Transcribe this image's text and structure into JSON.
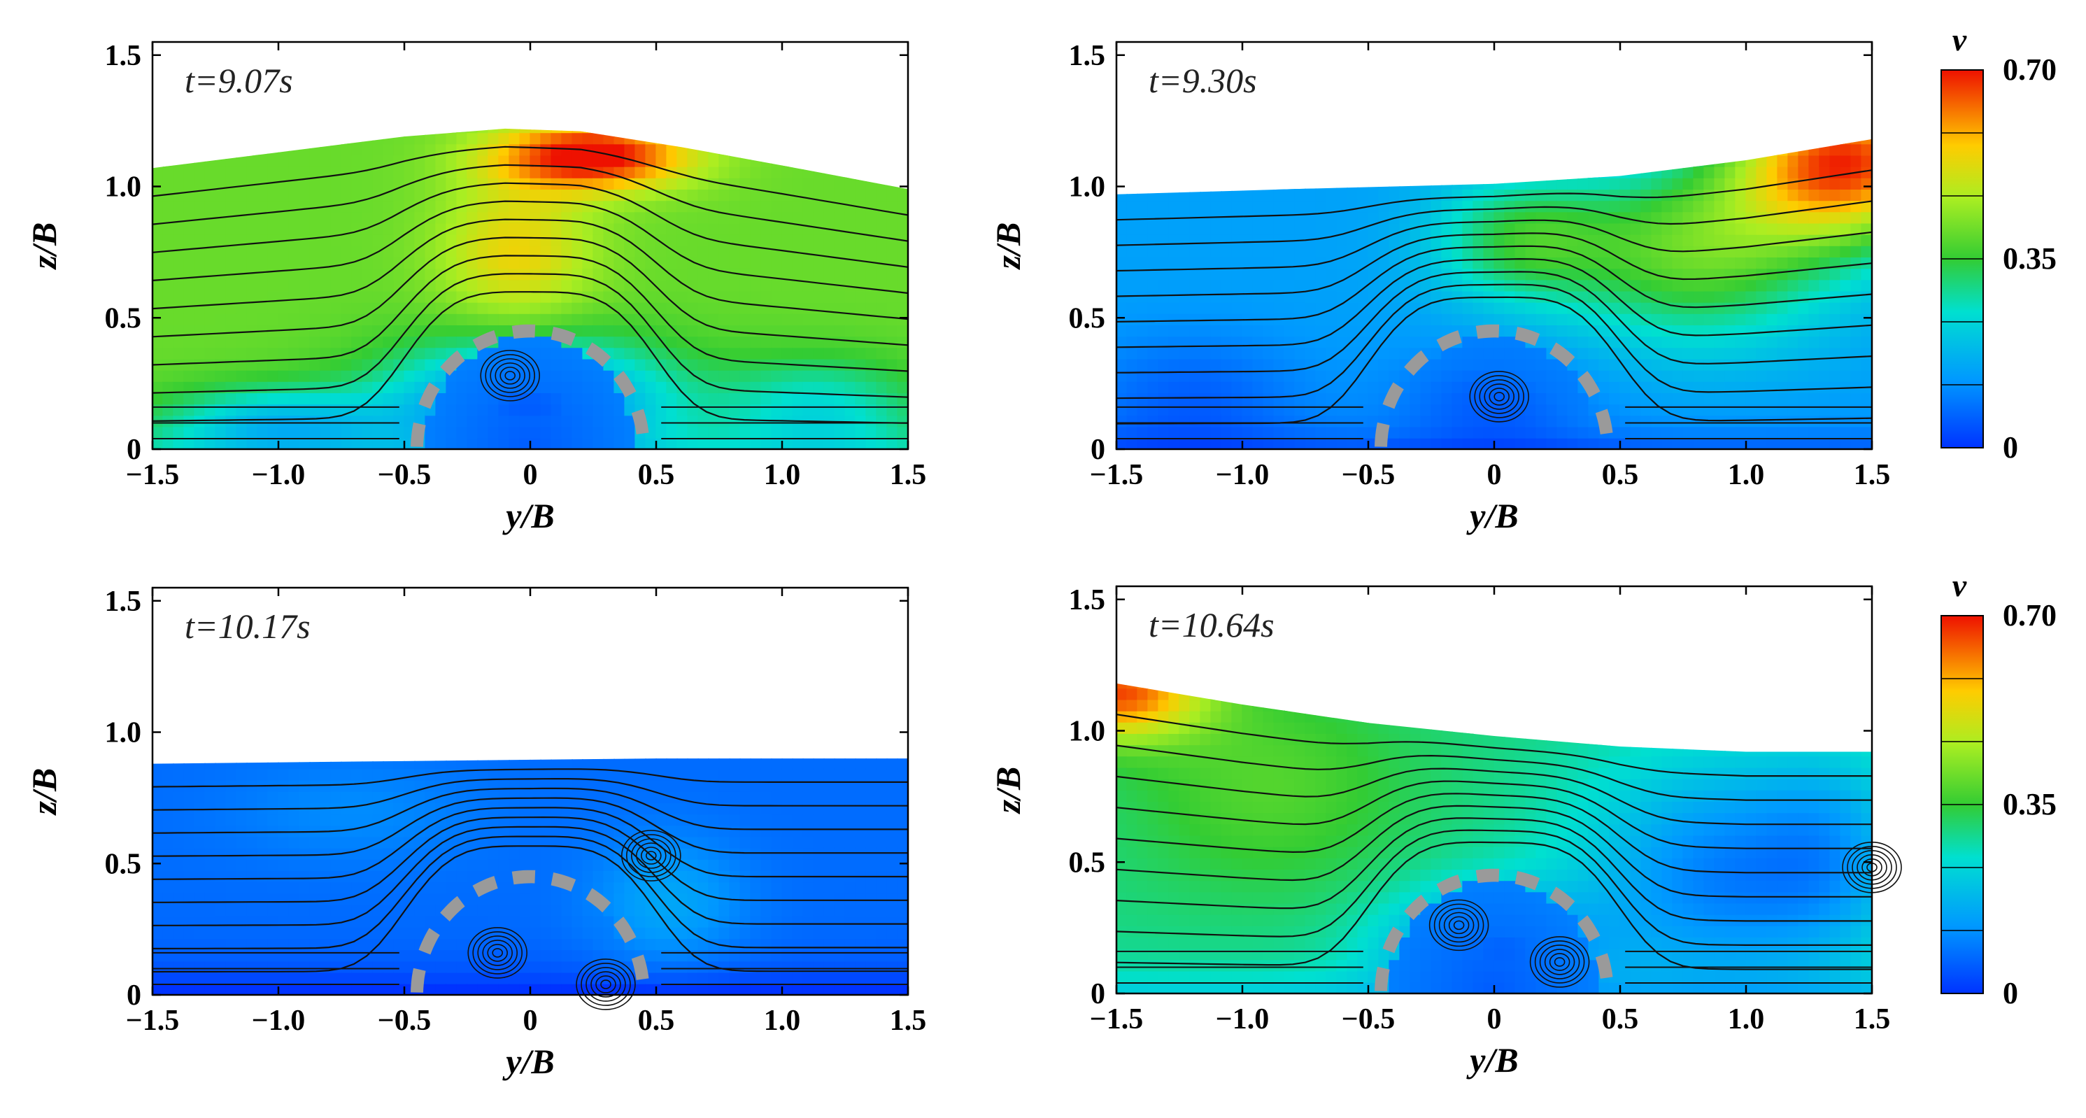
{
  "chart_data": [
    {
      "type": "heatmap",
      "time_label": "t=9.07s",
      "xlabel": "y/B",
      "ylabel": "z/B",
      "xlim": [
        -1.5,
        1.5
      ],
      "ylim": [
        0,
        1.55
      ],
      "x_ticks": [
        -1.5,
        -1.0,
        -0.5,
        0,
        0.5,
        1.0,
        1.5
      ],
      "x_tick_labels": [
        "−1.5",
        "−1.0",
        "−0.5",
        "0",
        "0.5",
        "1.0",
        "1.5"
      ],
      "y_ticks": [
        0,
        0.5,
        1.0,
        1.5
      ],
      "y_tick_labels": [
        "0",
        "0.5",
        "1.0",
        "1.5"
      ],
      "free_surface": [
        [
          -1.5,
          1.07
        ],
        [
          -1.0,
          1.13
        ],
        [
          -0.5,
          1.19
        ],
        [
          -0.1,
          1.22
        ],
        [
          0.2,
          1.21
        ],
        [
          0.6,
          1.15
        ],
        [
          1.0,
          1.08
        ],
        [
          1.5,
          0.99
        ]
      ],
      "obstacle": {
        "center_y": 0,
        "radius": 0.47,
        "segments": 9
      },
      "vortices": [
        [
          -0.08,
          0.28
        ]
      ],
      "colormap": "rainbow",
      "velocity_field": {
        "base": 0.4,
        "blobs": [
          {
            "y": 0.25,
            "z": 1.12,
            "sy": 0.38,
            "sz": 0.13,
            "amp": 0.33
          },
          {
            "y": -0.05,
            "z": 0.75,
            "sy": 0.3,
            "sz": 0.3,
            "amp": 0.14
          },
          {
            "y": 0,
            "z": 0.18,
            "sy": 0.55,
            "sz": 0.24,
            "amp": -0.34
          },
          {
            "y": -1.0,
            "z": 0.1,
            "sy": 0.45,
            "sz": 0.14,
            "amp": -0.2
          },
          {
            "y": 1.15,
            "z": 0.15,
            "sy": 0.4,
            "sz": 0.2,
            "amp": -0.15
          }
        ]
      }
    },
    {
      "type": "heatmap",
      "time_label": "t=9.30s",
      "xlabel": "y/B",
      "ylabel": "z/B",
      "xlim": [
        -1.5,
        1.5
      ],
      "ylim": [
        0,
        1.55
      ],
      "x_ticks": [
        -1.5,
        -1.0,
        -0.5,
        0,
        0.5,
        1.0,
        1.5
      ],
      "x_tick_labels": [
        "−1.5",
        "−1.0",
        "−0.5",
        "0",
        "0.5",
        "1.0",
        "1.5"
      ],
      "y_ticks": [
        0,
        0.5,
        1.0,
        1.5
      ],
      "y_tick_labels": [
        "0",
        "0.5",
        "1.0",
        "1.5"
      ],
      "free_surface": [
        [
          -1.5,
          0.97
        ],
        [
          -0.8,
          0.99
        ],
        [
          0,
          1.01
        ],
        [
          0.5,
          1.04
        ],
        [
          1.0,
          1.1
        ],
        [
          1.5,
          1.18
        ]
      ],
      "obstacle": {
        "center_y": 0,
        "radius": 0.47,
        "segments": 9
      },
      "vortices": [
        [
          0.02,
          0.2
        ]
      ],
      "colormap": "rainbow",
      "velocity_field": {
        "base": 0.14,
        "blobs": [
          {
            "y": 1.4,
            "z": 1.1,
            "sy": 0.45,
            "sz": 0.3,
            "amp": 0.52
          },
          {
            "y": 0.8,
            "z": 0.75,
            "sy": 0.55,
            "sz": 0.35,
            "amp": 0.25
          },
          {
            "y": 0.1,
            "z": 0.8,
            "sy": 0.35,
            "sz": 0.25,
            "amp": 0.18
          },
          {
            "y": -1.2,
            "z": 0.2,
            "sy": 0.45,
            "sz": 0.25,
            "amp": -0.08
          },
          {
            "y": 0,
            "z": 0.2,
            "sy": 0.4,
            "sz": 0.22,
            "amp": -0.08
          }
        ]
      }
    },
    {
      "type": "heatmap",
      "time_label": "t=10.17s",
      "xlabel": "y/B",
      "ylabel": "z/B",
      "xlim": [
        -1.5,
        1.5
      ],
      "ylim": [
        0,
        1.55
      ],
      "x_ticks": [
        -1.5,
        -1.0,
        -0.5,
        0,
        0.5,
        1.0,
        1.5
      ],
      "x_tick_labels": [
        "−1.5",
        "−1.0",
        "−0.5",
        "0",
        "0.5",
        "1.0",
        "1.5"
      ],
      "y_ticks": [
        0,
        0.5,
        1.0,
        1.5
      ],
      "y_tick_labels": [
        "0",
        "0.5",
        "1.0",
        "1.5"
      ],
      "free_surface": [
        [
          -1.5,
          0.88
        ],
        [
          -0.5,
          0.89
        ],
        [
          0.5,
          0.9
        ],
        [
          1.5,
          0.9
        ]
      ],
      "obstacle": {
        "center_y": 0,
        "radius": 0.47,
        "segments": 9
      },
      "vortices": [
        [
          -0.13,
          0.16
        ],
        [
          0.48,
          0.53
        ],
        [
          0.3,
          0.04
        ]
      ],
      "colormap": "rainbow",
      "velocity_field": {
        "base": 0.07,
        "blobs": [
          {
            "y": 0.55,
            "z": 0.35,
            "sy": 0.3,
            "sz": 0.25,
            "amp": 0.08
          },
          {
            "y": -0.7,
            "z": 0.7,
            "sy": 0.5,
            "sz": 0.2,
            "amp": 0.04
          }
        ]
      }
    },
    {
      "type": "heatmap",
      "time_label": "t=10.64s",
      "xlabel": "y/B",
      "ylabel": "z/B",
      "xlim": [
        -1.5,
        1.5
      ],
      "ylim": [
        0,
        1.55
      ],
      "x_ticks": [
        -1.5,
        -1.0,
        -0.5,
        0,
        0.5,
        1.0,
        1.5
      ],
      "x_tick_labels": [
        "−1.5",
        "−1.0",
        "−0.5",
        "0",
        "0.5",
        "1.0",
        "1.5"
      ],
      "y_ticks": [
        0,
        0.5,
        1.0,
        1.5
      ],
      "y_tick_labels": [
        "0",
        "0.5",
        "1.0",
        "1.5"
      ],
      "free_surface": [
        [
          -1.5,
          1.18
        ],
        [
          -1.0,
          1.1
        ],
        [
          -0.5,
          1.03
        ],
        [
          0,
          0.98
        ],
        [
          0.5,
          0.94
        ],
        [
          1.0,
          0.92
        ],
        [
          1.5,
          0.92
        ]
      ],
      "obstacle": {
        "center_y": 0,
        "radius": 0.47,
        "segments": 9
      },
      "vortices": [
        [
          -0.14,
          0.26
        ],
        [
          0.26,
          0.12
        ],
        [
          1.5,
          0.48
        ]
      ],
      "colormap": "rainbow",
      "velocity_field": {
        "base": 0.3,
        "blobs": [
          {
            "y": -1.5,
            "z": 1.15,
            "sy": 0.35,
            "sz": 0.18,
            "amp": 0.35
          },
          {
            "y": -0.9,
            "z": 0.8,
            "sy": 0.55,
            "sz": 0.4,
            "amp": 0.08
          },
          {
            "y": 0.9,
            "z": 0.45,
            "sy": 0.55,
            "sz": 0.45,
            "amp": -0.2
          },
          {
            "y": 1.35,
            "z": 0.55,
            "sy": 0.3,
            "sz": 0.4,
            "amp": -0.1
          },
          {
            "y": 0,
            "z": 0.18,
            "sy": 0.42,
            "sz": 0.22,
            "amp": -0.22
          }
        ]
      }
    }
  ],
  "colorbars": [
    {
      "label": "v",
      "min": 0,
      "max": 0.7,
      "tick_labels": [
        "0.70",
        "0.35",
        "0"
      ],
      "tick_values": [
        0.7,
        0.35,
        0
      ],
      "levels": 6
    },
    {
      "label": "v",
      "min": 0,
      "max": 0.7,
      "tick_labels": [
        "0.70",
        "0.35",
        "0"
      ],
      "tick_values": [
        0.7,
        0.35,
        0
      ],
      "levels": 6
    }
  ],
  "colors": {
    "obstacle": "#9a9a9a",
    "streamline": "#111111",
    "axis": "#000000"
  }
}
